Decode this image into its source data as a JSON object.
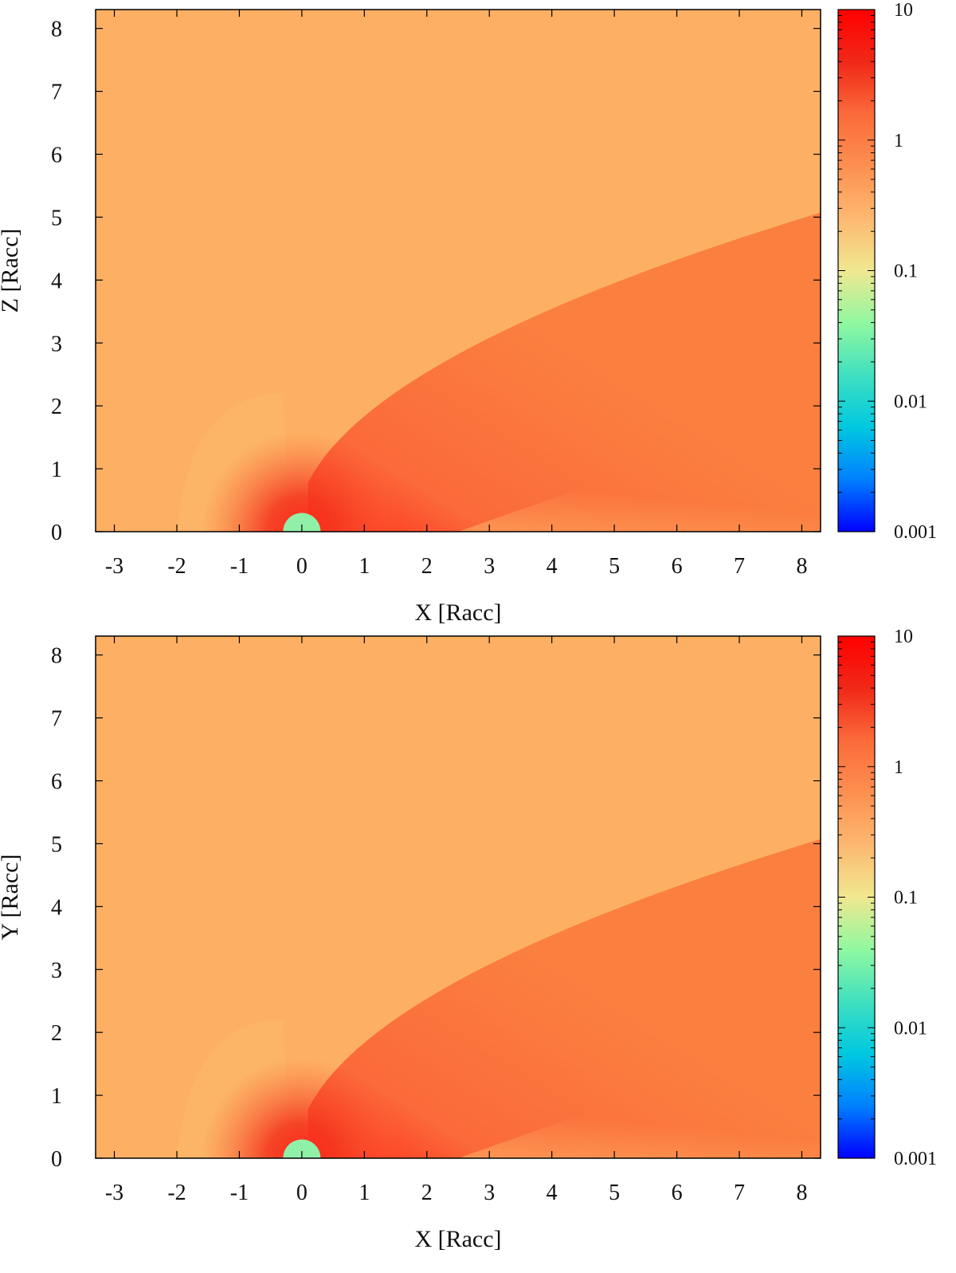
{
  "chart_data": [
    {
      "type": "heatmap",
      "xlabel": "X [Racc]",
      "ylabel": "Z [Racc]",
      "xlim": [
        -3.3,
        8.3
      ],
      "ylim": [
        0,
        8.3
      ],
      "xticks": [
        -3,
        -2,
        -1,
        0,
        1,
        2,
        3,
        4,
        5,
        6,
        7,
        8
      ],
      "yticks": [
        0,
        1,
        2,
        3,
        4,
        5,
        6,
        7,
        8
      ],
      "colorbar": {
        "scale": "log",
        "range": [
          0.001,
          10
        ],
        "tick_labels": [
          "10",
          "1",
          "0.1",
          "0.01",
          "0.001"
        ],
        "colormap": [
          "#0000ff",
          "#0080ff",
          "#00c8e0",
          "#40e0c0",
          "#90f8a0",
          "#f0e890",
          "#fdb870",
          "#fd9050",
          "#fb6a3a",
          "#f02818",
          "#ff0000"
        ]
      },
      "features": {
        "ambient_value": 1,
        "ambient_color": "#fdb063",
        "shock_color": "#fb8040",
        "apex_color": "#ff2818",
        "accretor_color": "#90f0a8",
        "accretor_center": [
          0,
          0
        ],
        "accretor_radius": 0.3
      }
    },
    {
      "type": "heatmap",
      "xlabel": "X [Racc]",
      "ylabel": "Y [Racc]",
      "xlim": [
        -3.3,
        8.3
      ],
      "ylim": [
        0,
        8.3
      ],
      "xticks": [
        -3,
        -2,
        -1,
        0,
        1,
        2,
        3,
        4,
        5,
        6,
        7,
        8
      ],
      "yticks": [
        0,
        1,
        2,
        3,
        4,
        5,
        6,
        7,
        8
      ],
      "colorbar": {
        "scale": "log",
        "range": [
          0.001,
          10
        ],
        "tick_labels": [
          "10",
          "1",
          "0.1",
          "0.01",
          "0.001"
        ],
        "colormap": [
          "#0000ff",
          "#0080ff",
          "#00c8e0",
          "#40e0c0",
          "#90f8a0",
          "#f0e890",
          "#fdb870",
          "#fd9050",
          "#fb6a3a",
          "#f02818",
          "#ff0000"
        ]
      },
      "features": {
        "ambient_value": 1,
        "ambient_color": "#fdb063",
        "shock_color": "#fb8040",
        "apex_color": "#ff2818",
        "accretor_color": "#90f0a8",
        "accretor_center": [
          0,
          0
        ],
        "accretor_radius": 0.3
      }
    }
  ]
}
